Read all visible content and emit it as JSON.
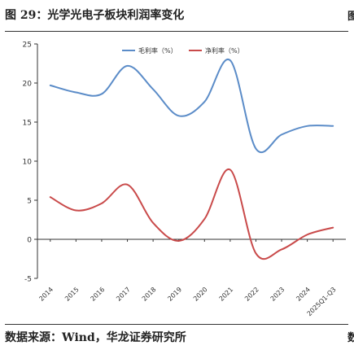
{
  "figure": {
    "title": "图 29：光学光电子板块利润率变化",
    "source": "数据来源：Wind，华龙证券研究所",
    "clipped_right_top": "图",
    "clipped_right_bottom": "数"
  },
  "chart_data": {
    "type": "line",
    "categories": [
      "2014",
      "2015",
      "2016",
      "2017",
      "2018",
      "2019",
      "2020",
      "2021",
      "2022",
      "2023",
      "2024",
      "2025Q1-Q3"
    ],
    "ylim": [
      -5,
      25
    ],
    "yticks": [
      -5,
      0,
      5,
      10,
      15,
      20,
      25
    ],
    "grid": false,
    "legend_position": "top-center",
    "series": [
      {
        "name": "毛利率（%）",
        "color": "#5b8cc8",
        "values": [
          19.7,
          18.8,
          18.6,
          22.2,
          19.2,
          15.8,
          17.6,
          22.9,
          11.6,
          13.4,
          14.5,
          14.5
        ]
      },
      {
        "name": "净利率（%）",
        "color": "#c94a4a",
        "values": [
          5.4,
          3.7,
          4.6,
          7.0,
          2.1,
          -0.2,
          2.6,
          8.9,
          -1.8,
          -1.3,
          0.6,
          1.5
        ]
      }
    ]
  }
}
